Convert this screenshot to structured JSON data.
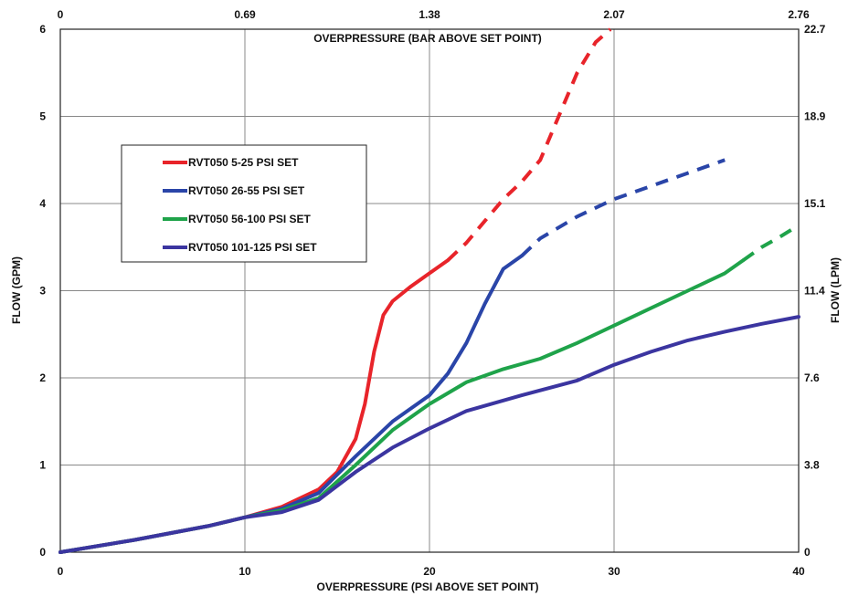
{
  "chart_data": {
    "type": "line",
    "xlabel": "OVERPRESSURE (PSI ABOVE SET POINT)",
    "ylabel": "FLOW (GPM)",
    "x2label": "OVERPRESSURE (BAR ABOVE SET POINT)",
    "y2label": "FLOW (LPM)",
    "xlim": [
      0,
      40
    ],
    "ylim": [
      0,
      6
    ],
    "x_ticks": [
      "0",
      "10",
      "20",
      "30",
      "40"
    ],
    "y_ticks": [
      "0",
      "1",
      "2",
      "3",
      "4",
      "5",
      "6"
    ],
    "x2_ticks": [
      "0",
      "0.69",
      "1.38",
      "2.07",
      "2.76"
    ],
    "y2_ticks": [
      "0",
      "3.8",
      "7.6",
      "11.4",
      "15.1",
      "18.9",
      "22.7"
    ],
    "grid": true,
    "legend_position": "upper-left",
    "series": [
      {
        "name": "RVT050 5-25 PSI SET",
        "color": "#e8242a",
        "solid": [
          [
            0,
            0
          ],
          [
            4,
            0.14
          ],
          [
            8,
            0.3
          ],
          [
            10,
            0.4
          ],
          [
            12,
            0.52
          ],
          [
            14,
            0.72
          ],
          [
            15,
            0.92
          ],
          [
            16,
            1.3
          ],
          [
            16.5,
            1.7
          ],
          [
            17,
            2.3
          ],
          [
            17.5,
            2.72
          ],
          [
            18,
            2.88
          ],
          [
            19,
            3.05
          ],
          [
            20,
            3.2
          ],
          [
            21,
            3.35
          ]
        ],
        "dashed": [
          [
            21,
            3.35
          ],
          [
            22,
            3.55
          ],
          [
            23,
            3.8
          ],
          [
            24,
            4.05
          ],
          [
            25,
            4.25
          ],
          [
            26,
            4.5
          ],
          [
            27,
            5.0
          ],
          [
            28,
            5.5
          ],
          [
            29,
            5.85
          ],
          [
            29.8,
            6.0
          ]
        ]
      },
      {
        "name": "RVT050 26-55 PSI SET",
        "color": "#2a45a8",
        "solid": [
          [
            0,
            0
          ],
          [
            4,
            0.14
          ],
          [
            8,
            0.3
          ],
          [
            10,
            0.4
          ],
          [
            12,
            0.5
          ],
          [
            14,
            0.68
          ],
          [
            16,
            1.1
          ],
          [
            18,
            1.5
          ],
          [
            20,
            1.8
          ],
          [
            21,
            2.05
          ],
          [
            22,
            2.4
          ],
          [
            23,
            2.85
          ],
          [
            24,
            3.25
          ],
          [
            25,
            3.4
          ]
        ],
        "dashed": [
          [
            25,
            3.4
          ],
          [
            26,
            3.6
          ],
          [
            28,
            3.85
          ],
          [
            30,
            4.05
          ],
          [
            32,
            4.2
          ],
          [
            34,
            4.35
          ],
          [
            36,
            4.5
          ]
        ]
      },
      {
        "name": "RVT050 56-100 PSI SET",
        "color": "#1fa34a",
        "solid": [
          [
            0,
            0
          ],
          [
            4,
            0.14
          ],
          [
            8,
            0.3
          ],
          [
            10,
            0.4
          ],
          [
            12,
            0.48
          ],
          [
            14,
            0.62
          ],
          [
            16,
            1.0
          ],
          [
            18,
            1.4
          ],
          [
            20,
            1.7
          ],
          [
            22,
            1.95
          ],
          [
            24,
            2.1
          ],
          [
            26,
            2.22
          ],
          [
            28,
            2.4
          ],
          [
            30,
            2.6
          ],
          [
            32,
            2.8
          ],
          [
            34,
            3.0
          ],
          [
            36,
            3.2
          ],
          [
            37,
            3.35
          ]
        ],
        "dashed": [
          [
            37,
            3.35
          ],
          [
            38,
            3.5
          ],
          [
            39,
            3.62
          ],
          [
            40,
            3.75
          ]
        ]
      },
      {
        "name": "RVT050 101-125 PSI SET",
        "color": "#3b35a0",
        "solid": [
          [
            0,
            0
          ],
          [
            4,
            0.14
          ],
          [
            8,
            0.3
          ],
          [
            10,
            0.4
          ],
          [
            12,
            0.46
          ],
          [
            14,
            0.6
          ],
          [
            16,
            0.92
          ],
          [
            18,
            1.2
          ],
          [
            20,
            1.42
          ],
          [
            22,
            1.62
          ],
          [
            25,
            1.8
          ],
          [
            28,
            1.97
          ],
          [
            30,
            2.15
          ],
          [
            32,
            2.3
          ],
          [
            34,
            2.43
          ],
          [
            36,
            2.53
          ],
          [
            38,
            2.62
          ],
          [
            40,
            2.7
          ]
        ],
        "dashed": []
      }
    ]
  }
}
